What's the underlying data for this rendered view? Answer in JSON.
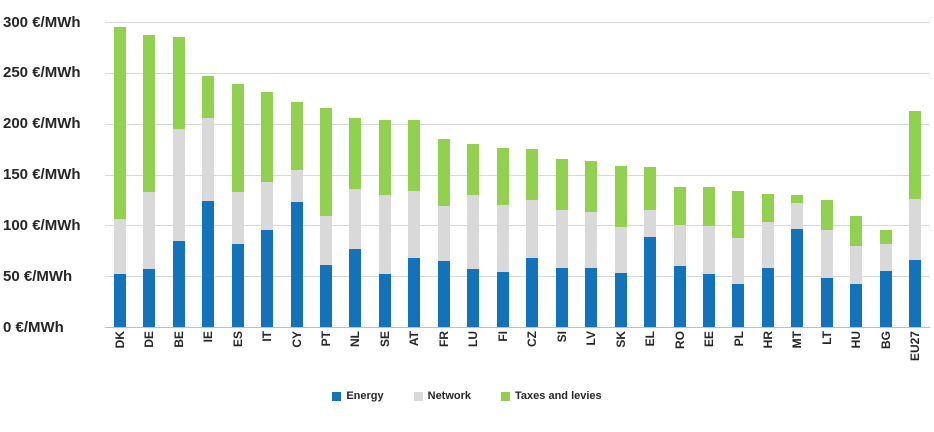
{
  "chart_data": {
    "type": "bar",
    "stacked": true,
    "title": "",
    "unit": "€/MWh",
    "categories": [
      "DK",
      "DE",
      "BE",
      "IE",
      "ES",
      "IT",
      "CY",
      "PT",
      "NL",
      "SE",
      "AT",
      "FR",
      "LU",
      "FI",
      "CZ",
      "SI",
      "LV",
      "SK",
      "EL",
      "RO",
      "EE",
      "PL",
      "HR",
      "MT",
      "LT",
      "HU",
      "BG",
      "EU27"
    ],
    "series": [
      {
        "name": "Energy",
        "color": "#1273bb",
        "values": [
          52,
          57,
          85,
          124,
          82,
          95,
          123,
          61,
          77,
          52,
          68,
          65,
          57,
          54,
          68,
          58,
          58,
          53,
          89,
          60,
          52,
          42,
          58,
          96,
          48,
          42,
          55,
          66
        ]
      },
      {
        "name": "Network",
        "color": "#d9d9d9",
        "values": [
          54,
          76,
          110,
          82,
          51,
          48,
          32,
          48,
          59,
          78,
          66,
          54,
          73,
          66,
          57,
          57,
          55,
          45,
          26,
          40,
          47,
          46,
          45,
          26,
          47,
          38,
          27,
          60
        ]
      },
      {
        "name": "Taxes and levies",
        "color": "#92d050",
        "values": [
          189,
          154,
          90,
          41,
          106,
          88,
          66,
          106,
          70,
          74,
          70,
          66,
          50,
          56,
          50,
          50,
          50,
          60,
          42,
          38,
          39,
          46,
          28,
          8,
          30,
          29,
          14,
          87
        ]
      }
    ],
    "totals": [
      295,
      287,
      285,
      247,
      239,
      231,
      221,
      215,
      206,
      204,
      204,
      185,
      180,
      176,
      175,
      165,
      163,
      158,
      157,
      138,
      138,
      134,
      131,
      130,
      125,
      109,
      96,
      213
    ],
    "ylim": [
      0,
      300
    ],
    "yticks": [
      {
        "value": 300,
        "label": "300 €/MWh"
      },
      {
        "value": 250,
        "label": "250 €/MWh"
      },
      {
        "value": 200,
        "label": "200 €/MWh"
      },
      {
        "value": 150,
        "label": "150 €/MWh"
      },
      {
        "value": 100,
        "label": "100 €/MWh"
      },
      {
        "value": 50,
        "label": "50 €/MWh"
      },
      {
        "value": 0,
        "label": "0 €/MWh"
      }
    ],
    "xlabel": "",
    "ylabel": "",
    "grid": "horizontal",
    "legend_position": "bottom",
    "gridline_color": "#d9d9d9",
    "axis_line_color": "#bfbfbf",
    "text_color": "#262626",
    "background_color": "#ffffff"
  }
}
